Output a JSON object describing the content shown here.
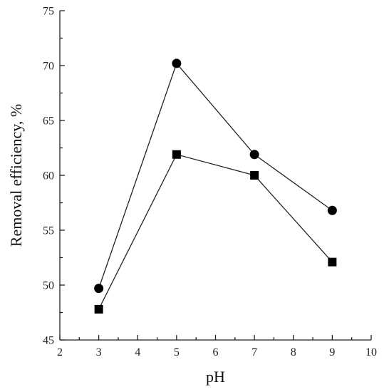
{
  "chart_data": {
    "type": "line",
    "title": "",
    "xlabel": "pH",
    "ylabel": "Removal efficiency, %",
    "xlim": [
      2,
      10
    ],
    "ylim": [
      45,
      75
    ],
    "xticks": [
      2,
      3,
      4,
      5,
      6,
      7,
      8,
      9,
      10
    ],
    "yticks": [
      45,
      50,
      55,
      60,
      65,
      70,
      75
    ],
    "grid": false,
    "legend": "none",
    "x": [
      3,
      5,
      7,
      9
    ],
    "series": [
      {
        "marker": "circle",
        "color": "#000000",
        "values": [
          49.7,
          70.2,
          61.9,
          56.8
        ]
      },
      {
        "marker": "square",
        "color": "#000000",
        "values": [
          47.8,
          61.9,
          60.0,
          52.1
        ]
      }
    ]
  }
}
